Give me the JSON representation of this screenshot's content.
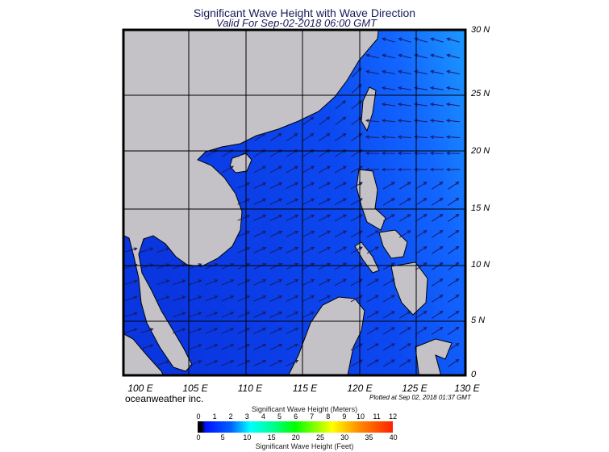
{
  "header": {
    "title": "Significant Wave Height with Wave Direction",
    "subtitle": "Valid For Sep-02-2018 06:00 GMT"
  },
  "map": {
    "lat_labels": [
      "30 N",
      "25 N",
      "20 N",
      "15 N",
      "10 N",
      "5 N",
      "0"
    ],
    "lon_labels": [
      "100 E",
      "105 E",
      "110 E",
      "115 E",
      "120 E",
      "125 E",
      "130 E"
    ],
    "colors": {
      "land": "#c4c2c6",
      "ocean_low": "#0a3ae8",
      "ocean_high": "#1a90ff",
      "arrow": "#1a1a66",
      "coast": "#000000"
    }
  },
  "footer": {
    "brand": "oceanweather inc.",
    "plotted": "Plotted at Sep 02, 2018 01:37 GMT"
  },
  "colorbar": {
    "title_top": "Significant Wave Height (Meters)",
    "title_bottom": "Significant Wave Height (Feet)",
    "meters": [
      "0",
      "1",
      "2",
      "3",
      "4",
      "5",
      "6",
      "7",
      "8",
      "9",
      "10",
      "11",
      "12"
    ],
    "feet": [
      "0",
      "5",
      "10",
      "15",
      "20",
      "25",
      "30",
      "35",
      "40"
    ]
  }
}
